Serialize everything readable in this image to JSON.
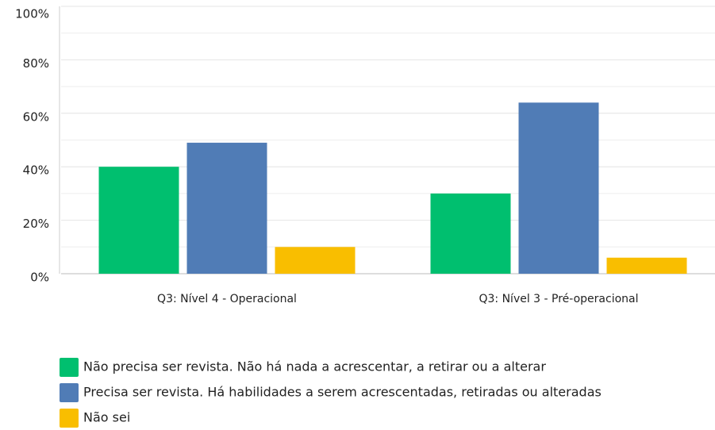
{
  "chart_data": {
    "type": "bar",
    "categories": [
      "Q3: Nível 4 - Operacional",
      "Q3: Nível 3 - Pré-operacional"
    ],
    "series": [
      {
        "name": "Não precisa ser revista. Não há nada a acrescentar, a retirar ou a alterar",
        "color": "#00bf6f",
        "values": [
          40,
          30
        ]
      },
      {
        "name": "Precisa ser revista. Há habilidades a serem acrescentadas, retiradas ou alteradas",
        "color": "#507cb6",
        "values": [
          49,
          64
        ]
      },
      {
        "name": "Não sei",
        "color": "#f9be00",
        "values": [
          10,
          6
        ]
      }
    ],
    "ylim": [
      0,
      100
    ],
    "yticks": [
      {
        "value": 0,
        "label": "0%"
      },
      {
        "value": 20,
        "label": "20%"
      },
      {
        "value": 40,
        "label": "40%"
      },
      {
        "value": 60,
        "label": "60%"
      },
      {
        "value": 80,
        "label": "80%"
      },
      {
        "value": 100,
        "label": "100%"
      }
    ],
    "grid": true,
    "minor_grid": true,
    "legend": "bottom"
  }
}
